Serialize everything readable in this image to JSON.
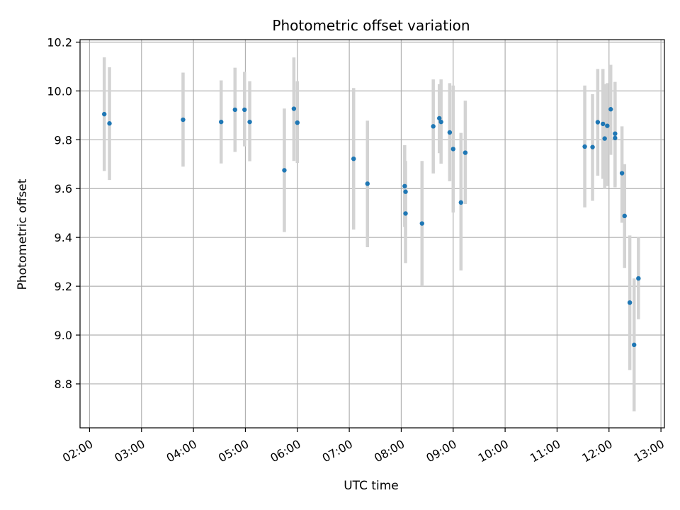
{
  "chart_data": {
    "type": "scatter",
    "title": "Photometric offset variation",
    "xlabel": "UTC time",
    "ylabel": "Photometric offset",
    "grid": true,
    "xlim": [
      "01:49",
      "13:04"
    ],
    "ylim": [
      8.62,
      10.21
    ],
    "xticks": [
      "02:00",
      "03:00",
      "04:00",
      "05:00",
      "06:00",
      "07:00",
      "08:00",
      "09:00",
      "10:00",
      "11:00",
      "12:00",
      "13:00"
    ],
    "yticks": [
      8.8,
      9.0,
      9.2,
      9.4,
      9.6,
      9.8,
      10.0,
      10.2
    ],
    "colors": {
      "points": "#1f77b4",
      "errorbars": "#d3d3d3",
      "grid": "#b0b0b0"
    },
    "points": [
      {
        "x": "02:17",
        "y": 9.905,
        "ylow": 9.672,
        "yhigh": 10.138
      },
      {
        "x": "02:23",
        "y": 9.867,
        "ylow": 9.635,
        "yhigh": 10.097
      },
      {
        "x": "03:48",
        "y": 9.882,
        "ylow": 9.69,
        "yhigh": 10.075
      },
      {
        "x": "04:32",
        "y": 9.873,
        "ylow": 9.703,
        "yhigh": 10.043
      },
      {
        "x": "04:48",
        "y": 9.923,
        "ylow": 9.75,
        "yhigh": 10.095
      },
      {
        "x": "04:59",
        "y": 9.923,
        "ylow": 9.773,
        "yhigh": 10.078
      },
      {
        "x": "05:05",
        "y": 9.873,
        "ylow": 9.712,
        "yhigh": 10.04
      },
      {
        "x": "05:45",
        "y": 9.675,
        "ylow": 9.422,
        "yhigh": 9.928
      },
      {
        "x": "05:56",
        "y": 9.927,
        "ylow": 9.713,
        "yhigh": 10.137
      },
      {
        "x": "06:00",
        "y": 9.87,
        "ylow": 9.705,
        "yhigh": 10.04
      },
      {
        "x": "07:05",
        "y": 9.722,
        "ylow": 9.432,
        "yhigh": 10.012
      },
      {
        "x": "07:21",
        "y": 9.62,
        "ylow": 9.36,
        "yhigh": 9.878
      },
      {
        "x": "08:04",
        "y": 9.61,
        "ylow": 9.443,
        "yhigh": 9.778
      },
      {
        "x": "08:05",
        "y": 9.587,
        "ylow": 9.295,
        "yhigh": 9.713
      },
      {
        "x": "08:05",
        "y": 9.498,
        "ylow": 9.41,
        "yhigh": 9.625
      },
      {
        "x": "08:24",
        "y": 9.457,
        "ylow": 9.2,
        "yhigh": 9.713
      },
      {
        "x": "08:37",
        "y": 9.855,
        "ylow": 9.662,
        "yhigh": 10.047
      },
      {
        "x": "08:44",
        "y": 9.888,
        "ylow": 9.745,
        "yhigh": 10.028
      },
      {
        "x": "08:46",
        "y": 9.873,
        "ylow": 9.702,
        "yhigh": 10.047
      },
      {
        "x": "08:56",
        "y": 9.83,
        "ylow": 9.63,
        "yhigh": 10.032
      },
      {
        "x": "09:00",
        "y": 9.762,
        "ylow": 9.502,
        "yhigh": 10.022
      },
      {
        "x": "09:09",
        "y": 9.543,
        "ylow": 9.265,
        "yhigh": 9.828
      },
      {
        "x": "09:14",
        "y": 9.747,
        "ylow": 9.537,
        "yhigh": 9.96
      },
      {
        "x": "11:32",
        "y": 9.772,
        "ylow": 9.523,
        "yhigh": 10.022
      },
      {
        "x": "11:41",
        "y": 9.77,
        "ylow": 9.55,
        "yhigh": 9.987
      },
      {
        "x": "11:47",
        "y": 9.872,
        "ylow": 9.653,
        "yhigh": 10.09
      },
      {
        "x": "11:53",
        "y": 9.865,
        "ylow": 9.64,
        "yhigh": 10.09
      },
      {
        "x": "11:55",
        "y": 9.805,
        "ylow": 9.598,
        "yhigh": 10.028
      },
      {
        "x": "11:58",
        "y": 9.857,
        "ylow": 9.61,
        "yhigh": 10.032
      },
      {
        "x": "12:02",
        "y": 9.925,
        "ylow": 9.738,
        "yhigh": 10.107
      },
      {
        "x": "12:07",
        "y": 9.825,
        "ylow": 9.605,
        "yhigh": 10.037
      },
      {
        "x": "12:07",
        "y": 9.807,
        "ylow": 9.613,
        "yhigh": 9.995
      },
      {
        "x": "12:15",
        "y": 9.663,
        "ylow": 9.46,
        "yhigh": 9.855
      },
      {
        "x": "12:18",
        "y": 9.488,
        "ylow": 9.275,
        "yhigh": 9.7
      },
      {
        "x": "12:24",
        "y": 9.133,
        "ylow": 8.857,
        "yhigh": 9.408
      },
      {
        "x": "12:29",
        "y": 8.96,
        "ylow": 8.688,
        "yhigh": 9.232
      },
      {
        "x": "12:34",
        "y": 9.232,
        "ylow": 9.065,
        "yhigh": 9.4
      }
    ]
  }
}
